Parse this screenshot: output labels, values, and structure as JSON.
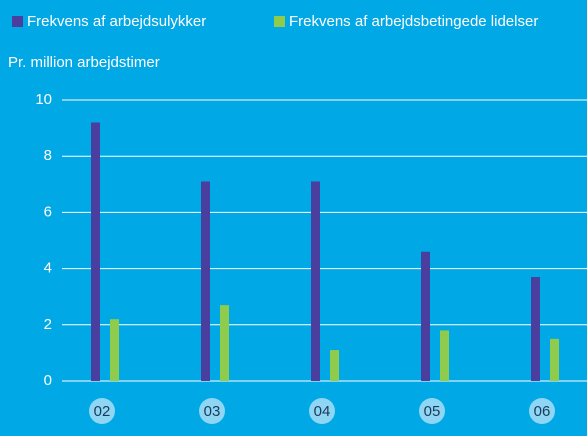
{
  "chart_data": {
    "type": "bar",
    "ylabel": "Pr. million arbejdstimer",
    "categories": [
      "02",
      "03",
      "04",
      "05",
      "06"
    ],
    "series": [
      {
        "name": "Frekvens af arbejdsulykker",
        "color": "#4a3f9f",
        "values": [
          9.2,
          7.1,
          7.1,
          4.6,
          3.7
        ]
      },
      {
        "name": "Frekvens af arbejdsbetingede lidelser",
        "color": "#8fcb4c",
        "values": [
          2.2,
          2.7,
          1.1,
          1.8,
          1.5
        ]
      }
    ],
    "ylim": [
      0,
      10
    ],
    "yticks": [
      0,
      2,
      4,
      6,
      8,
      10
    ],
    "grid": true,
    "legend": "top"
  }
}
